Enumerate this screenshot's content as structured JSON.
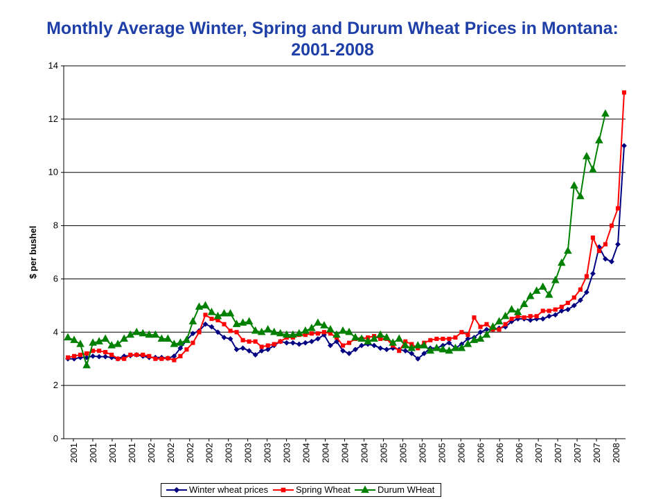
{
  "chart_data": {
    "type": "line",
    "title": [
      "Monthly Average Winter, Spring and Durum Wheat Prices in Montana:",
      "2001-2008"
    ],
    "ylabel": "$ per bushel",
    "xlabel": "",
    "ylim": [
      0,
      14
    ],
    "yticks": [
      0,
      2,
      4,
      6,
      8,
      10,
      12,
      14
    ],
    "grid": "horizontal",
    "legend_position": "bottom",
    "x_tick_labels": [
      "2001",
      "2001",
      "2001",
      "2001",
      "2002",
      "2002",
      "2002",
      "2002",
      "2003",
      "2003",
      "2003",
      "2003",
      "2004",
      "2004",
      "2004",
      "2004",
      "2005",
      "2005",
      "2005",
      "2005",
      "2006",
      "2006",
      "2006",
      "2006",
      "2007",
      "2007",
      "2007",
      "2007",
      "2008"
    ],
    "series": [
      {
        "name": "Winter wheat prices",
        "color": "#000080",
        "marker": "diamond",
        "values": [
          3.0,
          3.0,
          3.05,
          3.05,
          3.1,
          3.08,
          3.08,
          3.05,
          3.0,
          3.1,
          3.12,
          3.15,
          3.1,
          3.05,
          3.05,
          3.05,
          3.02,
          3.1,
          3.4,
          3.7,
          3.95,
          4.05,
          4.3,
          4.2,
          4.0,
          3.8,
          3.75,
          3.35,
          3.4,
          3.3,
          3.15,
          3.3,
          3.35,
          3.5,
          3.65,
          3.6,
          3.6,
          3.55,
          3.6,
          3.65,
          3.75,
          3.9,
          3.5,
          3.65,
          3.3,
          3.2,
          3.35,
          3.5,
          3.55,
          3.5,
          3.4,
          3.35,
          3.4,
          3.35,
          3.3,
          3.2,
          3.0,
          3.2,
          3.4,
          3.4,
          3.5,
          3.6,
          3.4,
          3.55,
          3.75,
          3.8,
          4.0,
          4.1,
          4.1,
          4.15,
          4.2,
          4.4,
          4.5,
          4.5,
          4.45,
          4.5,
          4.5,
          4.6,
          4.65,
          4.8,
          4.85,
          5.0,
          5.2,
          5.5,
          6.2,
          7.2,
          6.75,
          6.65,
          7.3,
          11.0
        ]
      },
      {
        "name": "Spring Wheat",
        "color": "#ff0000",
        "marker": "square",
        "values": [
          3.05,
          3.1,
          3.15,
          3.2,
          3.3,
          3.3,
          3.25,
          3.15,
          3.0,
          3.0,
          3.15,
          3.15,
          3.15,
          3.1,
          3.0,
          3.0,
          3.02,
          2.95,
          3.1,
          3.35,
          3.6,
          4.0,
          4.65,
          4.5,
          4.45,
          4.3,
          4.05,
          4.0,
          3.7,
          3.65,
          3.65,
          3.45,
          3.5,
          3.55,
          3.65,
          3.8,
          3.8,
          3.9,
          3.9,
          3.95,
          3.95,
          4.0,
          3.95,
          3.8,
          3.5,
          3.6,
          3.75,
          3.75,
          3.8,
          3.85,
          3.75,
          3.75,
          3.5,
          3.3,
          3.65,
          3.55,
          3.4,
          3.6,
          3.7,
          3.75,
          3.75,
          3.75,
          3.8,
          4.0,
          3.9,
          4.55,
          4.2,
          4.3,
          4.1,
          4.1,
          4.3,
          4.5,
          4.6,
          4.55,
          4.6,
          4.6,
          4.8,
          4.8,
          4.85,
          4.95,
          5.1,
          5.3,
          5.6,
          6.1,
          7.55,
          7.05,
          7.3,
          8.0,
          8.65,
          13.0
        ]
      },
      {
        "name": "Durum WHeat",
        "color": "#008000",
        "marker": "triangle",
        "values": [
          3.8,
          3.7,
          3.55,
          2.75,
          3.6,
          3.65,
          3.75,
          3.5,
          3.55,
          3.75,
          3.9,
          4.0,
          3.95,
          3.9,
          3.9,
          3.75,
          3.75,
          3.55,
          3.6,
          3.7,
          4.4,
          4.95,
          5.0,
          4.75,
          4.6,
          4.7,
          4.7,
          4.3,
          4.35,
          4.4,
          4.05,
          4.0,
          4.1,
          4.0,
          3.95,
          3.9,
          3.9,
          3.95,
          4.05,
          4.15,
          4.35,
          4.25,
          4.1,
          3.9,
          4.05,
          4.0,
          3.8,
          3.75,
          3.65,
          3.75,
          3.9,
          3.8,
          3.6,
          3.75,
          3.5,
          3.4,
          3.5,
          3.5,
          3.3,
          3.4,
          3.35,
          3.3,
          3.4,
          3.4,
          3.55,
          3.7,
          3.75,
          3.9,
          4.2,
          4.4,
          4.6,
          4.85,
          4.75,
          5.05,
          5.35,
          5.55,
          5.7,
          5.4,
          5.95,
          6.6,
          7.05,
          9.5,
          9.1,
          10.6,
          10.1,
          11.2,
          12.2
        ]
      }
    ]
  }
}
